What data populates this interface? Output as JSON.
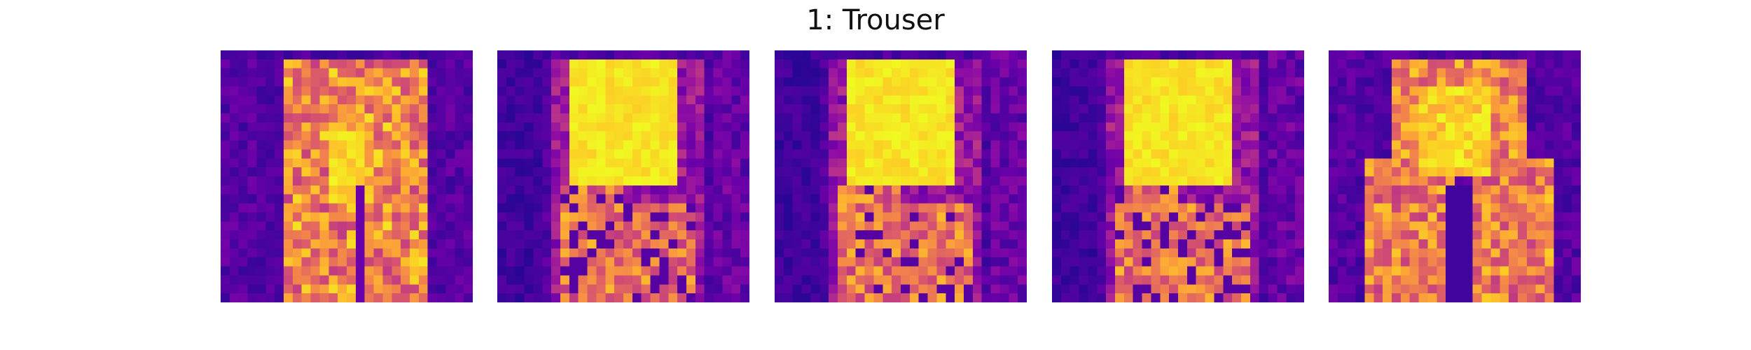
{
  "figure": {
    "title": "1: Trouser"
  },
  "colormap": "plasma",
  "grid_size": 28,
  "panels": [
    {
      "id": "panel-1",
      "variant": "legs-full"
    },
    {
      "id": "panel-2",
      "variant": "bright-top"
    },
    {
      "id": "panel-3",
      "variant": "bright-top"
    },
    {
      "id": "panel-4",
      "variant": "bright-top"
    },
    {
      "id": "panel-5",
      "variant": "legs-hip"
    }
  ]
}
